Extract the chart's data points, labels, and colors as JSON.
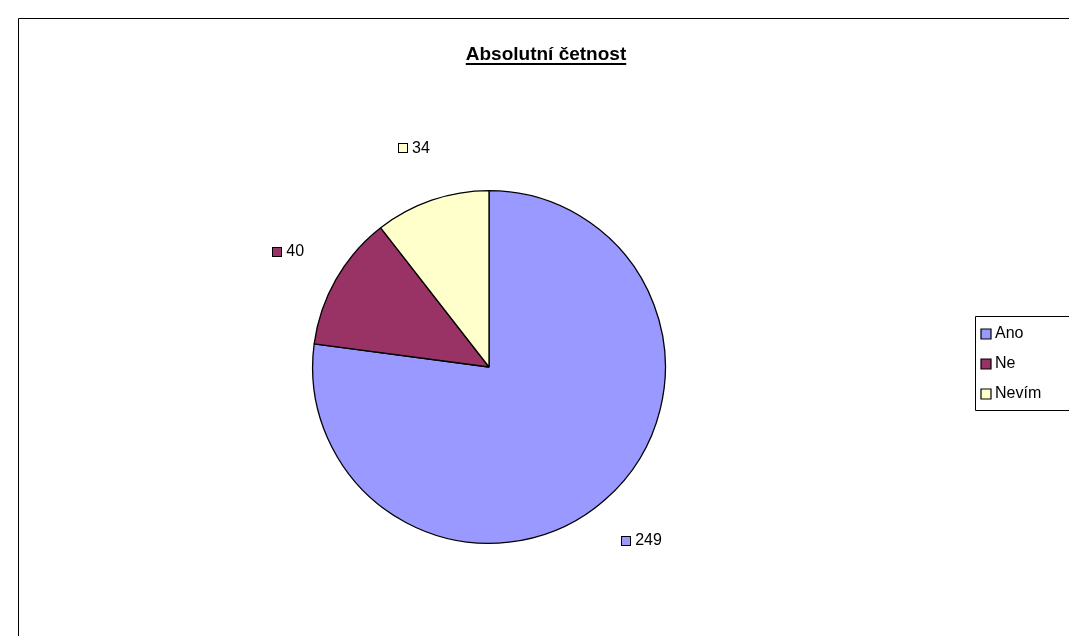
{
  "chart_data": {
    "type": "pie",
    "title": "Absolutní četnost",
    "categories": [
      "Ano",
      "Ne",
      "Nevím"
    ],
    "values": [
      249,
      40,
      34
    ],
    "colors": [
      "#9999ff",
      "#993366",
      "#ffffcc"
    ],
    "data_labels": true,
    "legend": "right"
  }
}
